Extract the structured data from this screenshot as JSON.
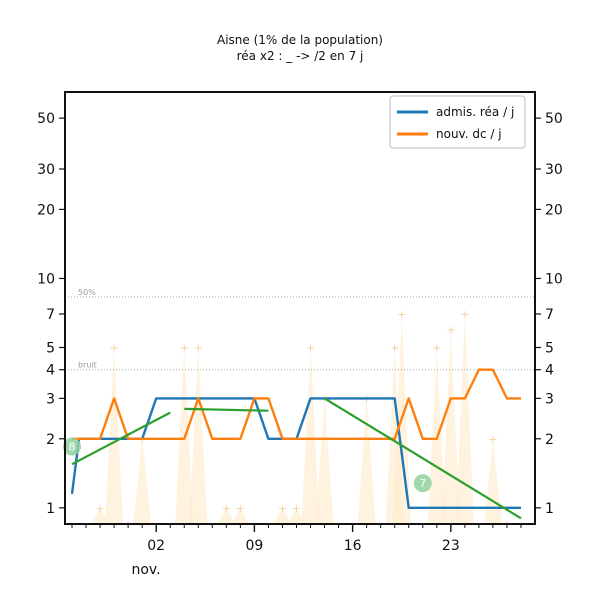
{
  "chart_data": {
    "type": "line",
    "title": "Aisne (1% de la population)",
    "subtitle": "réa x2 : _ -> /2 en 7 j",
    "yscale": "log",
    "ylim": [
      0.85,
      65
    ],
    "yticks": [
      1,
      2,
      3,
      4,
      5,
      7,
      10,
      20,
      30,
      50
    ],
    "x_tick_labels": [
      "02",
      "09",
      "16",
      "23"
    ],
    "x_tick_days": [
      2,
      9,
      16,
      23
    ],
    "x_month_label": "nov.",
    "xlim": [
      -4.5,
      29
    ],
    "reference_lines": [
      {
        "label": "50%",
        "y": 8.3
      },
      {
        "label": "bruit",
        "y": 4.0
      }
    ],
    "legend": {
      "position": "top-right",
      "entries": [
        "admis. réa / j",
        "nouv. dc / j"
      ]
    },
    "series": [
      {
        "name": "admis. réa / j",
        "color": "#1f77b4",
        "x": [
          -4,
          -3.5,
          -3,
          -2,
          -1,
          0,
          1,
          2,
          3,
          4,
          5,
          6,
          7,
          8,
          9,
          10,
          11,
          12,
          13,
          14,
          15,
          16,
          17,
          18,
          19,
          20,
          21,
          22,
          23,
          24,
          25,
          26,
          27,
          28
        ],
        "y": [
          1.15,
          2.0,
          2.0,
          2.0,
          2.0,
          2.0,
          2.0,
          3.0,
          3.0,
          3.0,
          3.0,
          3.0,
          3.0,
          3.0,
          3.0,
          2.0,
          2.0,
          2.0,
          3.0,
          3.0,
          3.0,
          3.0,
          3.0,
          3.0,
          3.0,
          1.0,
          1.0,
          1.0,
          1.0,
          1.0,
          1.0,
          1.0,
          1.0,
          1.0
        ]
      },
      {
        "name": "nouv. dc / j",
        "color": "#ff7f0e",
        "x": [
          -4,
          -3,
          -2,
          -1,
          0,
          1,
          2,
          3,
          4,
          5,
          6,
          7,
          8,
          9,
          10,
          11,
          12,
          13,
          14,
          15,
          16,
          17,
          18,
          19,
          20,
          21,
          22,
          23,
          24,
          25,
          26,
          27,
          28
        ],
        "y": [
          2.0,
          2.0,
          2.0,
          3.0,
          2.0,
          2.0,
          2.0,
          2.0,
          2.0,
          3.0,
          2.0,
          2.0,
          2.0,
          3.0,
          3.0,
          2.0,
          2.0,
          2.0,
          2.0,
          2.0,
          2.0,
          2.0,
          2.0,
          2.0,
          3.0,
          2.0,
          2.0,
          3.0,
          3.0,
          4.0,
          4.0,
          3.0,
          3.0
        ]
      }
    ],
    "trend_lines": [
      {
        "color": "#2ca02c",
        "x": [
          -4,
          3
        ],
        "y": [
          1.55,
          2.6
        ]
      },
      {
        "color": "#2ca02c",
        "x": [
          4,
          10
        ],
        "y": [
          2.7,
          2.65
        ]
      },
      {
        "color": "#2ca02c",
        "x": [
          14,
          28
        ],
        "y": [
          3.0,
          0.9
        ]
      }
    ],
    "markers": [
      {
        "label": "8",
        "x": -4,
        "y": 1.85
      },
      {
        "label": "7",
        "x": 21,
        "y": 1.28
      }
    ],
    "raw_points": [
      {
        "x": -2,
        "y": 1.0
      },
      {
        "x": -1,
        "y": 5.0
      },
      {
        "x": 0,
        "y": 0.85
      },
      {
        "x": 1,
        "y": 2.0
      },
      {
        "x": 4,
        "y": 5.0
      },
      {
        "x": 5,
        "y": 5.0
      },
      {
        "x": 7,
        "y": 1.0
      },
      {
        "x": 8,
        "y": 1.0
      },
      {
        "x": 11,
        "y": 1.0
      },
      {
        "x": 12,
        "y": 1.0
      },
      {
        "x": 13,
        "y": 5.0
      },
      {
        "x": 14,
        "y": 3.0
      },
      {
        "x": 17,
        "y": 3.0
      },
      {
        "x": 19,
        "y": 5.0
      },
      {
        "x": 19.5,
        "y": 7.0
      },
      {
        "x": 22,
        "y": 5.0
      },
      {
        "x": 23,
        "y": 6.0
      },
      {
        "x": 24,
        "y": 7.0
      },
      {
        "x": 26,
        "y": 2.0
      },
      {
        "x": 27,
        "y": 0.85
      }
    ]
  }
}
